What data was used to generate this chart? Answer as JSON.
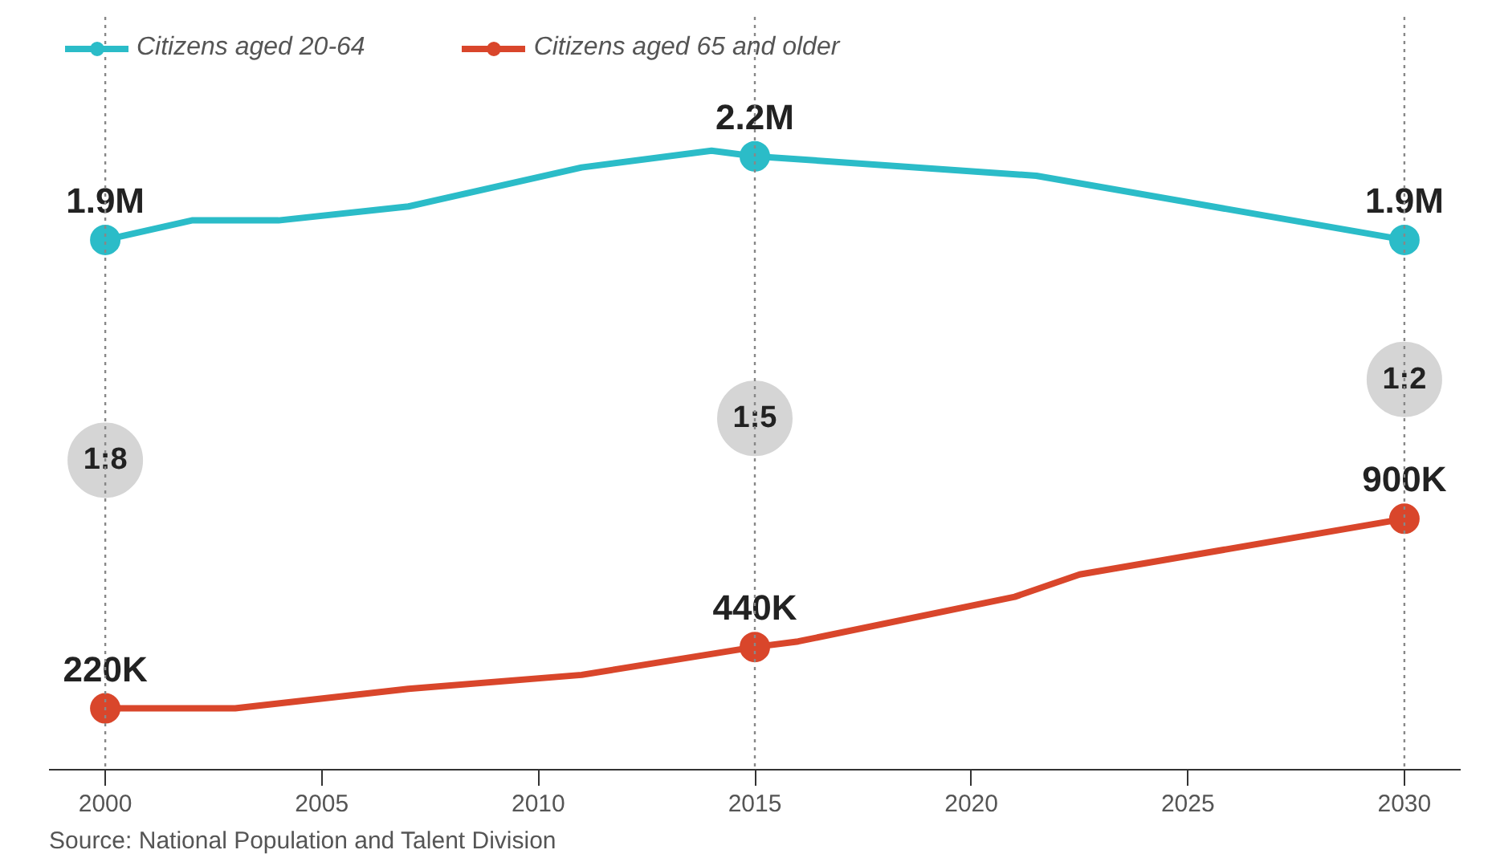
{
  "chart_data": {
    "type": "line",
    "x": [
      2000,
      2002,
      2004,
      2007,
      2011,
      2014,
      2015,
      2021.5,
      2030
    ],
    "series": [
      {
        "name": "Citizens aged 20-64",
        "color": "#2bbcc8",
        "values": [
          1900000,
          1970000,
          1970000,
          2020000,
          2160000,
          2220000,
          2200000,
          2130000,
          1900000
        ],
        "value_labels": [
          "1.9M",
          null,
          null,
          null,
          null,
          null,
          "2.2M",
          null,
          "1.9M"
        ]
      },
      {
        "name": "Citizens aged 65 and older",
        "color": "#d9462b",
        "x": [
          2000,
          2003,
          2007,
          2011,
          2015,
          2016,
          2021,
          2022.5,
          2030
        ],
        "values": [
          220000,
          220000,
          290000,
          340000,
          440000,
          460000,
          620000,
          700000,
          900000
        ],
        "value_labels": [
          "220K",
          null,
          null,
          null,
          "440K",
          null,
          null,
          null,
          "900K"
        ]
      },
      {
        "type": "scatter",
        "color": "#2bbcc8",
        "x": [
          2000,
          2015,
          2030
        ],
        "values": [
          1900000,
          2200000,
          1900000
        ]
      },
      {
        "type": "scatter",
        "color": "#d9462b",
        "x": [
          2000,
          2015,
          2030
        ],
        "values": [
          220000,
          440000,
          900000
        ]
      }
    ],
    "xlim": [
      1998.7,
      2031.3
    ],
    "xticks": [
      2000,
      2005,
      2010,
      2015,
      2020,
      2025,
      2030
    ],
    "ylim": [
      0,
      2700000
    ],
    "tick_labels": "x",
    "grid": false,
    "legend": "top left",
    "ref_lines": [
      {
        "axis": "x",
        "value": 2000,
        "color": "#888888",
        "line_style": "dotted"
      },
      {
        "axis": "x",
        "value": 2015,
        "color": "#888888",
        "line_style": "dotted"
      },
      {
        "axis": "x",
        "value": 2030,
        "color": "#888888",
        "line_style": "dotted"
      }
    ],
    "annotations": [
      {
        "text": "1:8",
        "x": 2000,
        "y": 1110000
      },
      {
        "text": "1:5",
        "x": 2015,
        "y": 1260000
      },
      {
        "text": "1:2",
        "x": 2030,
        "y": 1400000
      },
      "Source: National Population and Talent Division"
    ]
  }
}
